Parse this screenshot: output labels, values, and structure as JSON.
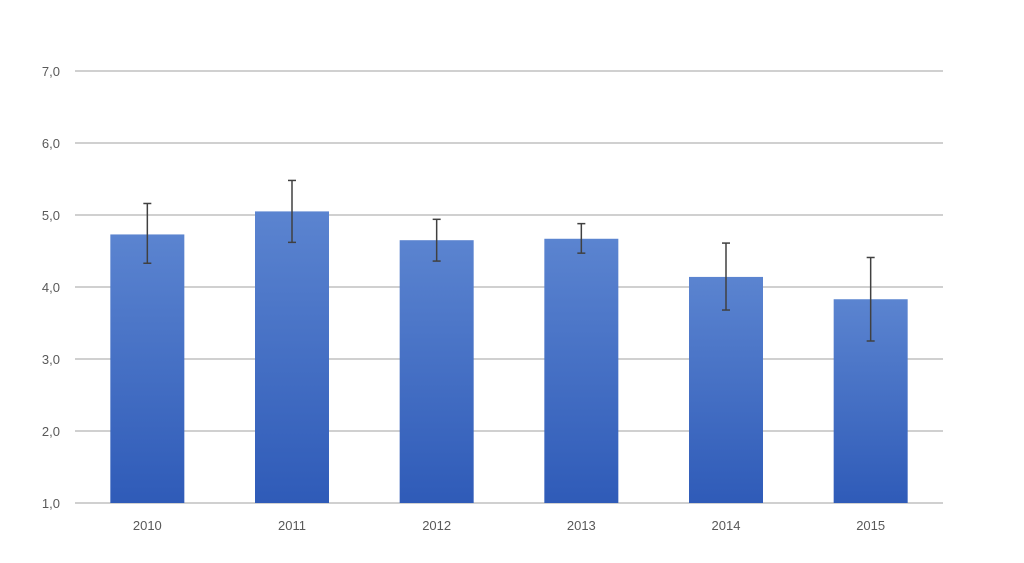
{
  "chart_data": {
    "type": "bar",
    "categories": [
      "2010",
      "2011",
      "2012",
      "2013",
      "2014",
      "2015"
    ],
    "values": [
      4.73,
      5.05,
      4.65,
      4.67,
      4.14,
      3.83
    ],
    "error_upper": [
      5.16,
      5.48,
      4.94,
      4.88,
      4.61,
      4.41
    ],
    "error_lower": [
      4.33,
      4.62,
      4.36,
      4.47,
      3.68,
      3.25
    ],
    "y_ticks": [
      "1,0",
      "2,0",
      "3,0",
      "4,0",
      "5,0",
      "6,0",
      "7,0"
    ],
    "y_tick_values": [
      1,
      2,
      3,
      4,
      5,
      6,
      7
    ],
    "ylim": [
      1,
      7
    ],
    "title": "",
    "xlabel": "",
    "ylabel": "",
    "grid": true,
    "legend": "none",
    "colors": {
      "bar_top": "#5b84d0",
      "bar_bottom": "#2f5bb8",
      "grid": "#d0d0d0",
      "error_bar": "#404040",
      "tick_text": "#595959"
    }
  }
}
